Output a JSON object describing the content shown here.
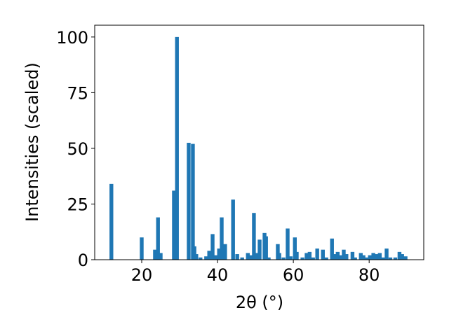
{
  "chart_data": {
    "type": "bar",
    "xlabel": "2θ (°)",
    "ylabel": "Intensities (scaled)",
    "color": "#1f77b4",
    "xlim": [
      7.6,
      94.4
    ],
    "ylim": [
      0,
      105.3
    ],
    "xticks": [
      20,
      40,
      60,
      80
    ],
    "yticks": [
      0,
      25,
      50,
      75,
      100
    ],
    "x": [
      12.0,
      20.0,
      23.5,
      24.3,
      25.0,
      28.5,
      29.3,
      32.4,
      33.5,
      33.9,
      34.4,
      35.5,
      37.0,
      37.8,
      38.7,
      39.4,
      40.4,
      41.1,
      42.0,
      44.1,
      45.2,
      46.5,
      48.0,
      48.7,
      49.6,
      50.2,
      51.1,
      52.4,
      52.8,
      53.5,
      55.9,
      56.3,
      57.4,
      58.5,
      59.3,
      60.4,
      60.9,
      62.4,
      63.5,
      64.3,
      65.2,
      66.3,
      67.8,
      68.7,
      70.2,
      70.9,
      71.7,
      72.4,
      73.3,
      74.0,
      75.6,
      76.3,
      77.8,
      78.5,
      79.3,
      80.2,
      81.1,
      82.0,
      82.8,
      83.7,
      84.6,
      85.6,
      86.9,
      88.0,
      88.7,
      89.6
    ],
    "values": [
      34,
      10,
      4.5,
      19,
      3,
      31,
      100,
      52.5,
      52,
      6,
      2.5,
      1,
      1.5,
      4,
      11.5,
      2,
      5,
      19,
      7,
      27,
      2.5,
      1,
      3,
      2,
      21,
      3,
      9,
      12,
      10.5,
      1,
      7,
      3,
      1,
      14,
      1.5,
      10,
      3.5,
      1,
      3,
      3.5,
      1,
      5,
      4.5,
      1,
      9.5,
      2.5,
      3.5,
      2,
      4.5,
      2.5,
      3.5,
      1,
      3,
      2,
      1,
      2,
      3,
      2.5,
      3,
      1,
      5,
      1,
      1,
      3.5,
      2.5,
      1.5
    ]
  }
}
